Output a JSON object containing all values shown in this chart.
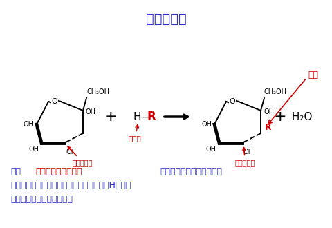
{
  "title": "糖成苷反应",
  "title_color": "#3333cc",
  "title_fontsize": 14,
  "bg_color": "#ffffff",
  "description_line1_parts": [
    {
      "text": "糖的",
      "color": "#3333cc"
    },
    {
      "text": "半缩醛（或酮）羟基",
      "color": "#cc0000"
    },
    {
      "text": "与另一个分子（如醇、糖、",
      "color": "#3333cc"
    }
  ],
  "description_line2": "嘌呤或嘧啶）的羟基、胺基或巯基上的活性H发生脱",
  "description_line3": "水缩合反应，则会形成苷。",
  "description_color": "#3333cc",
  "red_color": "#cc0000",
  "black_color": "#000000"
}
